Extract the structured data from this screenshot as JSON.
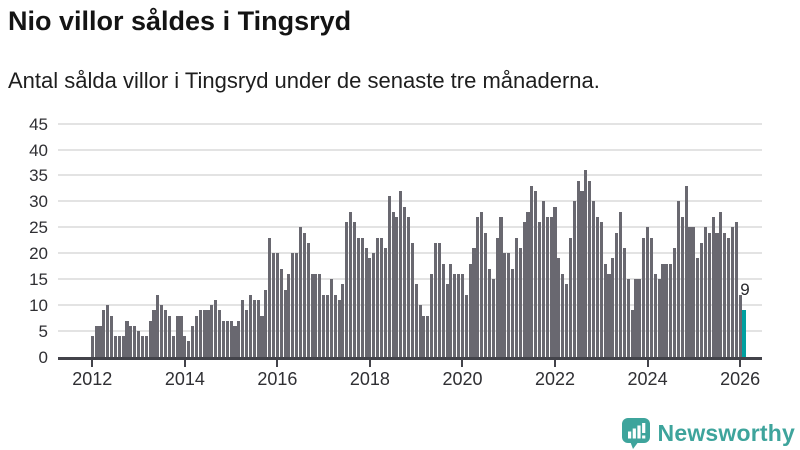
{
  "header": {
    "title": "Nio villor såldes i Tingsryd",
    "subtitle": "Antal sålda villor i Tingsryd under de senaste tre månaderna."
  },
  "chart_data": {
    "type": "bar",
    "title": "Nio villor såldes i Tingsryd",
    "subtitle": "Antal sålda villor i Tingsryd under de senaste tre månaderna.",
    "x_unit": "month",
    "x_start": "2012-01",
    "x_end": "2026-02",
    "values": [
      4,
      6,
      6,
      9,
      10,
      8,
      4,
      4,
      4,
      7,
      6,
      6,
      5,
      4,
      4,
      7,
      9,
      12,
      10,
      9,
      8,
      4,
      8,
      8,
      4,
      3,
      6,
      8,
      9,
      9,
      9,
      10,
      11,
      9,
      7,
      7,
      7,
      6,
      7,
      11,
      9,
      12,
      11,
      11,
      8,
      13,
      23,
      20,
      20,
      17,
      13,
      16,
      20,
      20,
      25,
      24,
      22,
      16,
      16,
      16,
      12,
      12,
      15,
      12,
      11,
      14,
      26,
      28,
      26,
      23,
      23,
      21,
      19,
      20,
      23,
      23,
      21,
      31,
      28,
      27,
      32,
      29,
      27,
      22,
      14,
      10,
      8,
      8,
      16,
      22,
      22,
      18,
      14,
      18,
      16,
      16,
      16,
      12,
      18,
      21,
      27,
      28,
      24,
      17,
      15,
      23,
      27,
      20,
      20,
      17,
      23,
      21,
      26,
      28,
      33,
      32,
      26,
      30,
      27,
      27,
      29,
      19,
      16,
      14,
      23,
      30,
      34,
      32,
      36,
      34,
      30,
      27,
      26,
      18,
      16,
      19,
      24,
      28,
      21,
      15,
      9,
      15,
      15,
      23,
      25,
      23,
      16,
      15,
      18,
      18,
      18,
      21,
      30,
      27,
      33,
      25,
      25,
      19,
      22,
      25,
      24,
      27,
      24,
      28,
      24,
      23,
      25,
      26,
      12,
      9
    ],
    "highlight": {
      "index_from_end": 1,
      "value": 9,
      "label": "9",
      "color": "#00A0A0"
    },
    "bar_color": "#696870",
    "ylim": [
      0,
      45
    ],
    "yticks": [
      0,
      5,
      10,
      15,
      20,
      25,
      30,
      35,
      40,
      45
    ],
    "xticks": [
      "2012",
      "2014",
      "2016",
      "2018",
      "2020",
      "2022",
      "2024",
      "2026"
    ],
    "grid": true,
    "gridline_color": "#e3e3e3",
    "axis_color": "#43434a",
    "legend": "none"
  },
  "annotation": {
    "last_value_label": "9"
  },
  "branding": {
    "logo_text": "Newsworthy",
    "logo_color": "#3EA49C",
    "logo_icon": "bar-chart-speech-bubble-icon"
  }
}
